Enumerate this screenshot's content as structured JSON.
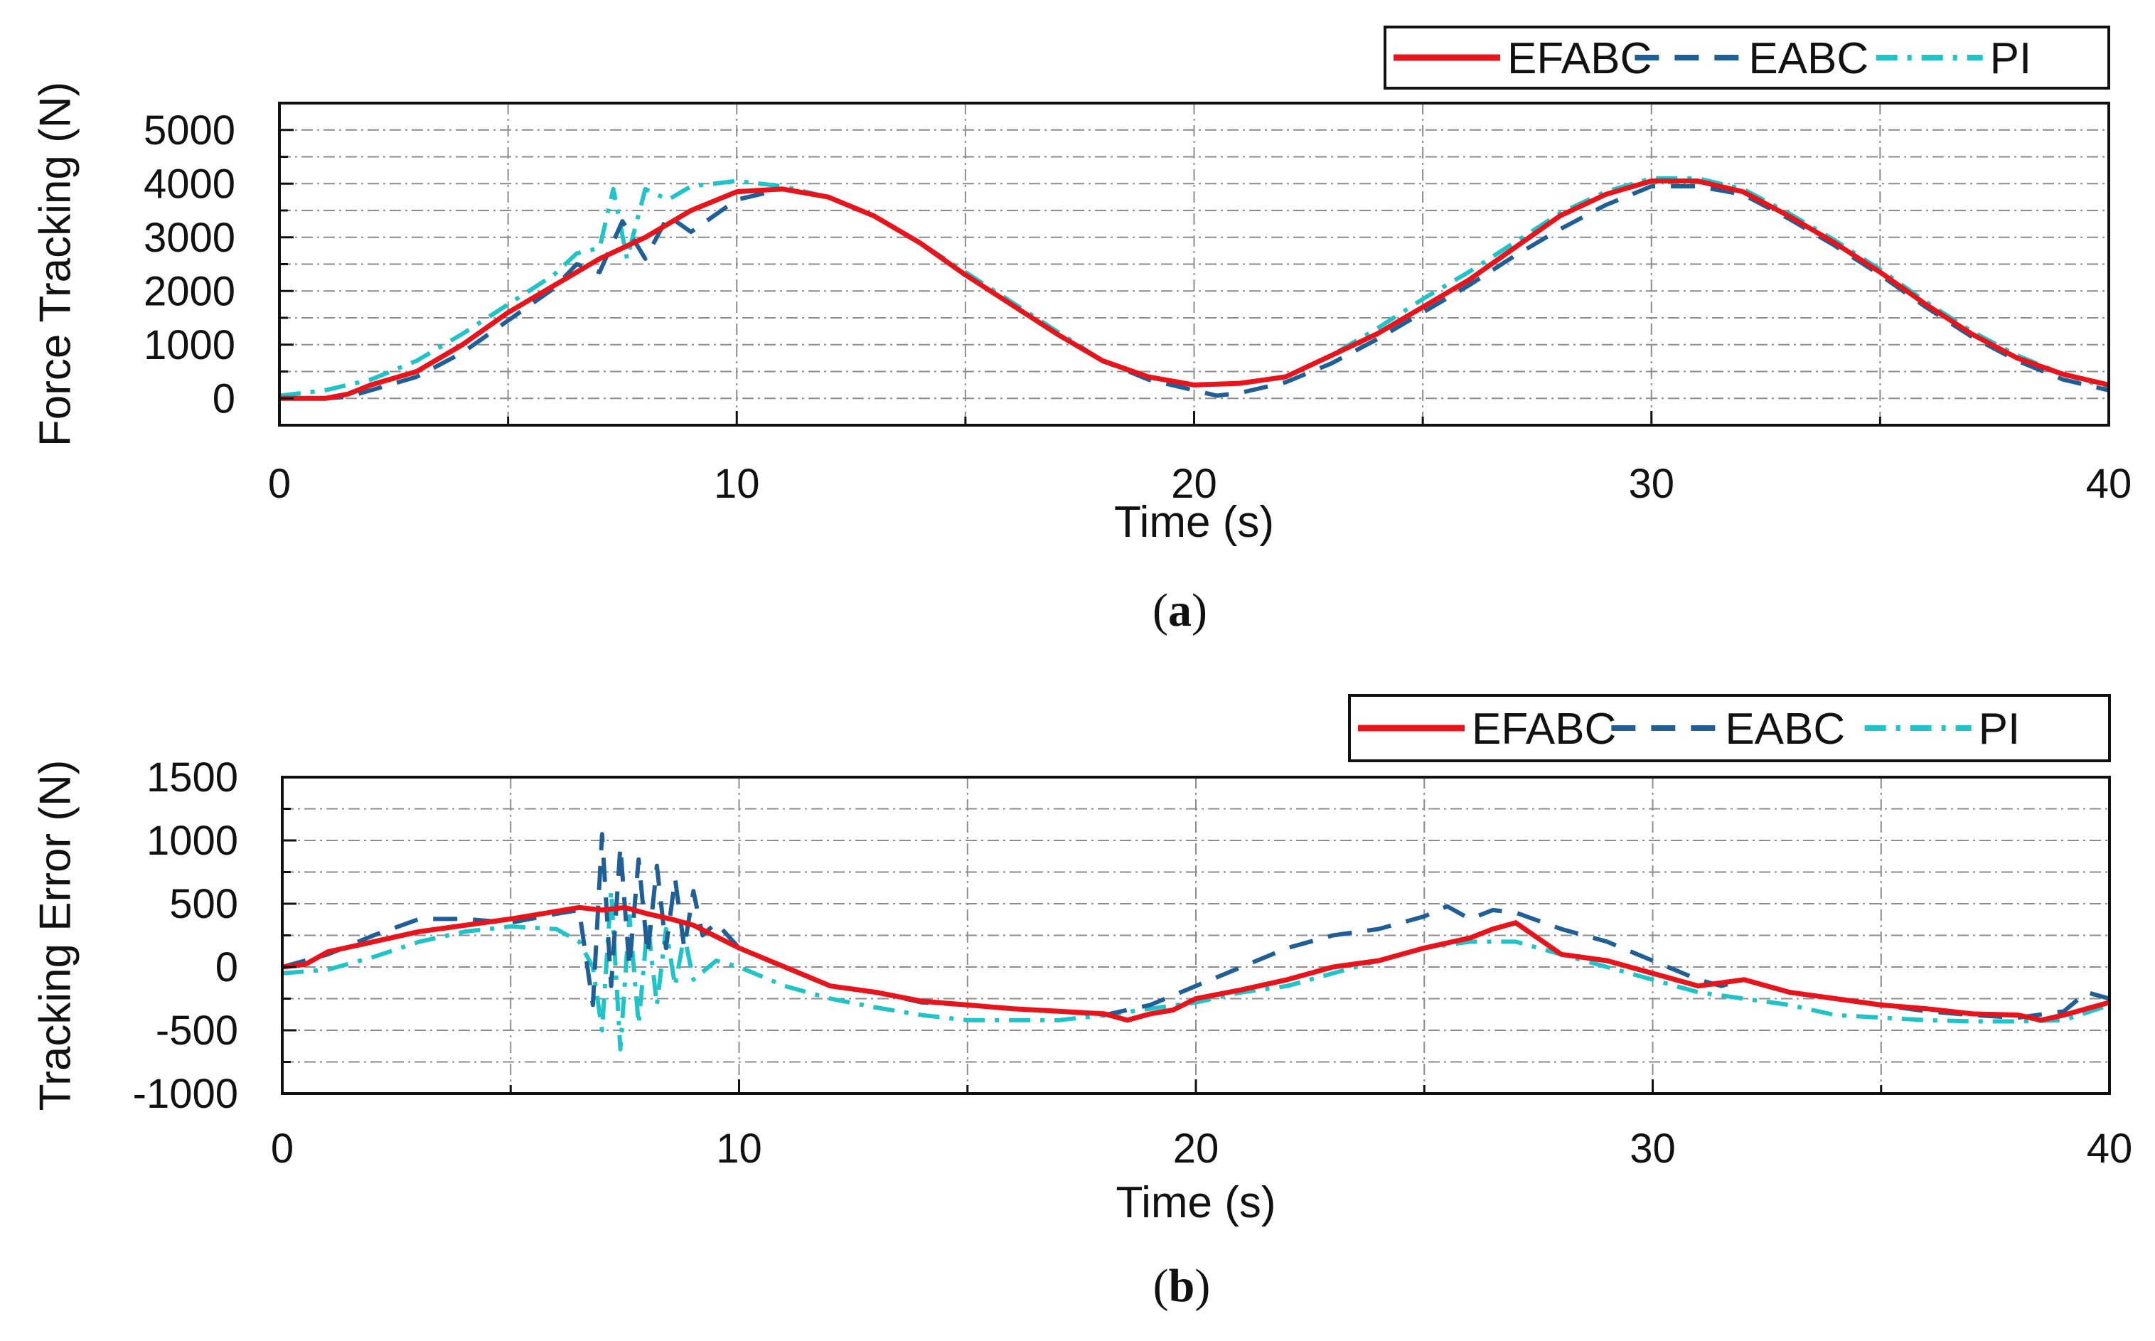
{
  "colors": {
    "efabc": "#e8141c",
    "eabc": "#1f5f96",
    "pi": "#20c4c8",
    "grid": "#8c8c8c",
    "axis": "#111111",
    "background": "#ffffff"
  },
  "chart_data": [
    {
      "type": "line",
      "panel_label": "(a)",
      "panel_letter": "a",
      "title": "",
      "xlabel": "Time (s)",
      "ylabel": "Force Tracking (N)",
      "xlim": [
        0,
        40
      ],
      "ylim": [
        -500,
        5500
      ],
      "x_ticks": [
        0,
        10,
        20,
        30,
        40
      ],
      "x_tick_labels": [
        "0",
        "10",
        "20",
        "30",
        "40"
      ],
      "y_ticks": [
        0,
        1000,
        2000,
        3000,
        4000,
        5000
      ],
      "y_tick_labels": [
        "0",
        "1000",
        "2000",
        "3000",
        "4000",
        "5000"
      ],
      "grid": true,
      "legend_position": "top-right",
      "series": [
        {
          "name": "EFABC",
          "style": "solid",
          "x": [
            0,
            1,
            1.5,
            2,
            3,
            4,
            5,
            6,
            7,
            8,
            9,
            10,
            11,
            12,
            13,
            14,
            15,
            16,
            17,
            18,
            19,
            20,
            21,
            22,
            23,
            24,
            25,
            26,
            27,
            28,
            29,
            30,
            31,
            32,
            33,
            34,
            35,
            36,
            37,
            38,
            39,
            40
          ],
          "y": [
            0,
            0,
            80,
            250,
            500,
            1000,
            1600,
            2100,
            2600,
            3000,
            3500,
            3850,
            3900,
            3750,
            3400,
            2900,
            2300,
            1750,
            1200,
            700,
            400,
            250,
            280,
            400,
            800,
            1200,
            1700,
            2200,
            2800,
            3400,
            3800,
            4050,
            4050,
            3850,
            3400,
            2900,
            2350,
            1750,
            1200,
            750,
            450,
            250
          ]
        },
        {
          "name": "EABC",
          "style": "dashed",
          "x": [
            0,
            1,
            1.5,
            2,
            3,
            4,
            5,
            6,
            6.5,
            7,
            7.5,
            8,
            8.5,
            9,
            10,
            11,
            12,
            13,
            14,
            15,
            16,
            17,
            18,
            19,
            20,
            20.5,
            21,
            22,
            23,
            24,
            25,
            26,
            27,
            28,
            29,
            30,
            31,
            32,
            33,
            34,
            35,
            36,
            37,
            38,
            39,
            40
          ],
          "y": [
            0,
            0,
            30,
            150,
            400,
            850,
            1450,
            2050,
            2500,
            2350,
            3300,
            2600,
            3400,
            3100,
            3700,
            3900,
            3750,
            3400,
            2900,
            2300,
            1750,
            1200,
            700,
            350,
            150,
            50,
            100,
            300,
            650,
            1100,
            1600,
            2100,
            2650,
            3150,
            3600,
            3950,
            3950,
            3800,
            3350,
            2850,
            2300,
            1700,
            1150,
            700,
            350,
            150
          ]
        },
        {
          "name": "PI",
          "style": "dash-dot",
          "x": [
            0,
            1,
            2,
            3,
            4,
            5,
            6,
            6.5,
            7,
            7.3,
            7.6,
            8,
            8.5,
            9,
            10,
            11,
            12,
            13,
            14,
            15,
            16,
            17,
            18,
            19,
            20,
            21,
            22,
            23,
            24,
            25,
            26,
            27,
            28,
            29,
            30,
            31,
            32,
            33,
            34,
            35,
            36,
            37,
            38,
            39,
            40
          ],
          "y": [
            50,
            150,
            350,
            700,
            1200,
            1750,
            2300,
            2700,
            2800,
            3900,
            2600,
            3900,
            3700,
            3950,
            4050,
            3950,
            3750,
            3400,
            2900,
            2350,
            1800,
            1250,
            700,
            400,
            250,
            280,
            400,
            800,
            1300,
            1850,
            2350,
            2900,
            3450,
            3850,
            4100,
            4100,
            3900,
            3450,
            2950,
            2400,
            1800,
            1250,
            800,
            450,
            200
          ]
        }
      ]
    },
    {
      "type": "line",
      "panel_label": "(b)",
      "panel_letter": "b",
      "title": "",
      "xlabel": "Time (s)",
      "ylabel": "Tracking Error (N)",
      "xlim": [
        0,
        40
      ],
      "ylim": [
        -1000,
        1500
      ],
      "x_ticks": [
        0,
        10,
        20,
        30,
        40
      ],
      "x_tick_labels": [
        "0",
        "10",
        "20",
        "30",
        "40"
      ],
      "y_ticks": [
        -1000,
        -500,
        0,
        500,
        1000,
        1500
      ],
      "y_tick_labels": [
        "-1000",
        "-500",
        "0",
        "500",
        "1000",
        "1500"
      ],
      "grid": true,
      "legend_position": "top-right",
      "series": [
        {
          "name": "EFABC",
          "style": "solid",
          "x": [
            0,
            0.5,
            1,
            2,
            3,
            4,
            5,
            6,
            6.5,
            7,
            7.5,
            8,
            8.5,
            9,
            10,
            11,
            12,
            13,
            14,
            15,
            16,
            17,
            18,
            18.5,
            19,
            19.5,
            20,
            21,
            22,
            23,
            24,
            25,
            26,
            26.5,
            27,
            28,
            29,
            30,
            31,
            32,
            33,
            34,
            35,
            36,
            37,
            38,
            38.5,
            39,
            40
          ],
          "y": [
            0,
            20,
            120,
            200,
            280,
            330,
            380,
            440,
            470,
            450,
            470,
            420,
            380,
            330,
            150,
            0,
            -150,
            -200,
            -270,
            -300,
            -330,
            -350,
            -370,
            -420,
            -370,
            -340,
            -250,
            -180,
            -100,
            0,
            50,
            150,
            230,
            300,
            350,
            100,
            50,
            -50,
            -150,
            -100,
            -200,
            -250,
            -300,
            -330,
            -370,
            -380,
            -420,
            -380,
            -280
          ]
        },
        {
          "name": "EABC",
          "style": "dashed",
          "x": [
            0,
            1,
            2,
            3,
            4,
            5,
            6,
            6.5,
            6.8,
            7.0,
            7.2,
            7.4,
            7.6,
            7.8,
            8.0,
            8.2,
            8.4,
            8.6,
            8.8,
            9.0,
            9.2,
            9.5,
            10,
            11,
            12,
            13,
            14,
            15,
            16,
            17,
            18,
            19,
            20,
            21,
            22,
            23,
            24,
            25,
            25.5,
            26,
            26.5,
            27,
            28,
            29,
            30,
            31,
            31.5,
            32,
            33,
            34,
            35,
            36,
            37,
            38,
            39,
            39.5,
            40
          ],
          "y": [
            0,
            100,
            250,
            380,
            380,
            350,
            420,
            450,
            -300,
            1050,
            -150,
            950,
            0,
            850,
            100,
            800,
            150,
            700,
            150,
            600,
            250,
            350,
            150,
            0,
            -150,
            -200,
            -280,
            -300,
            -330,
            -350,
            -380,
            -300,
            -150,
            0,
            150,
            250,
            300,
            400,
            480,
            380,
            450,
            430,
            300,
            200,
            50,
            -100,
            -150,
            -100,
            -200,
            -250,
            -300,
            -350,
            -380,
            -400,
            -350,
            -200,
            -250
          ]
        },
        {
          "name": "PI",
          "style": "dash-dot",
          "x": [
            0,
            1,
            2,
            3,
            4,
            5,
            6,
            6.5,
            6.8,
            7.0,
            7.2,
            7.4,
            7.6,
            7.8,
            8.0,
            8.2,
            8.4,
            8.6,
            8.8,
            9.0,
            9.5,
            10,
            11,
            12,
            13,
            14,
            15,
            16,
            17,
            18,
            19,
            20,
            21,
            22,
            23,
            24,
            25,
            26,
            27,
            28,
            29,
            30,
            31,
            32,
            33,
            34,
            35,
            36,
            37,
            38,
            39,
            40
          ],
          "y": [
            -50,
            -20,
            80,
            200,
            280,
            320,
            300,
            200,
            0,
            -500,
            600,
            -650,
            400,
            -450,
            350,
            -300,
            300,
            -150,
            250,
            -100,
            50,
            0,
            -150,
            -250,
            -320,
            -380,
            -420,
            -420,
            -420,
            -380,
            -330,
            -280,
            -200,
            -150,
            -50,
            50,
            150,
            200,
            200,
            100,
            0,
            -100,
            -200,
            -250,
            -300,
            -380,
            -400,
            -420,
            -430,
            -430,
            -420,
            -300
          ]
        }
      ]
    }
  ]
}
